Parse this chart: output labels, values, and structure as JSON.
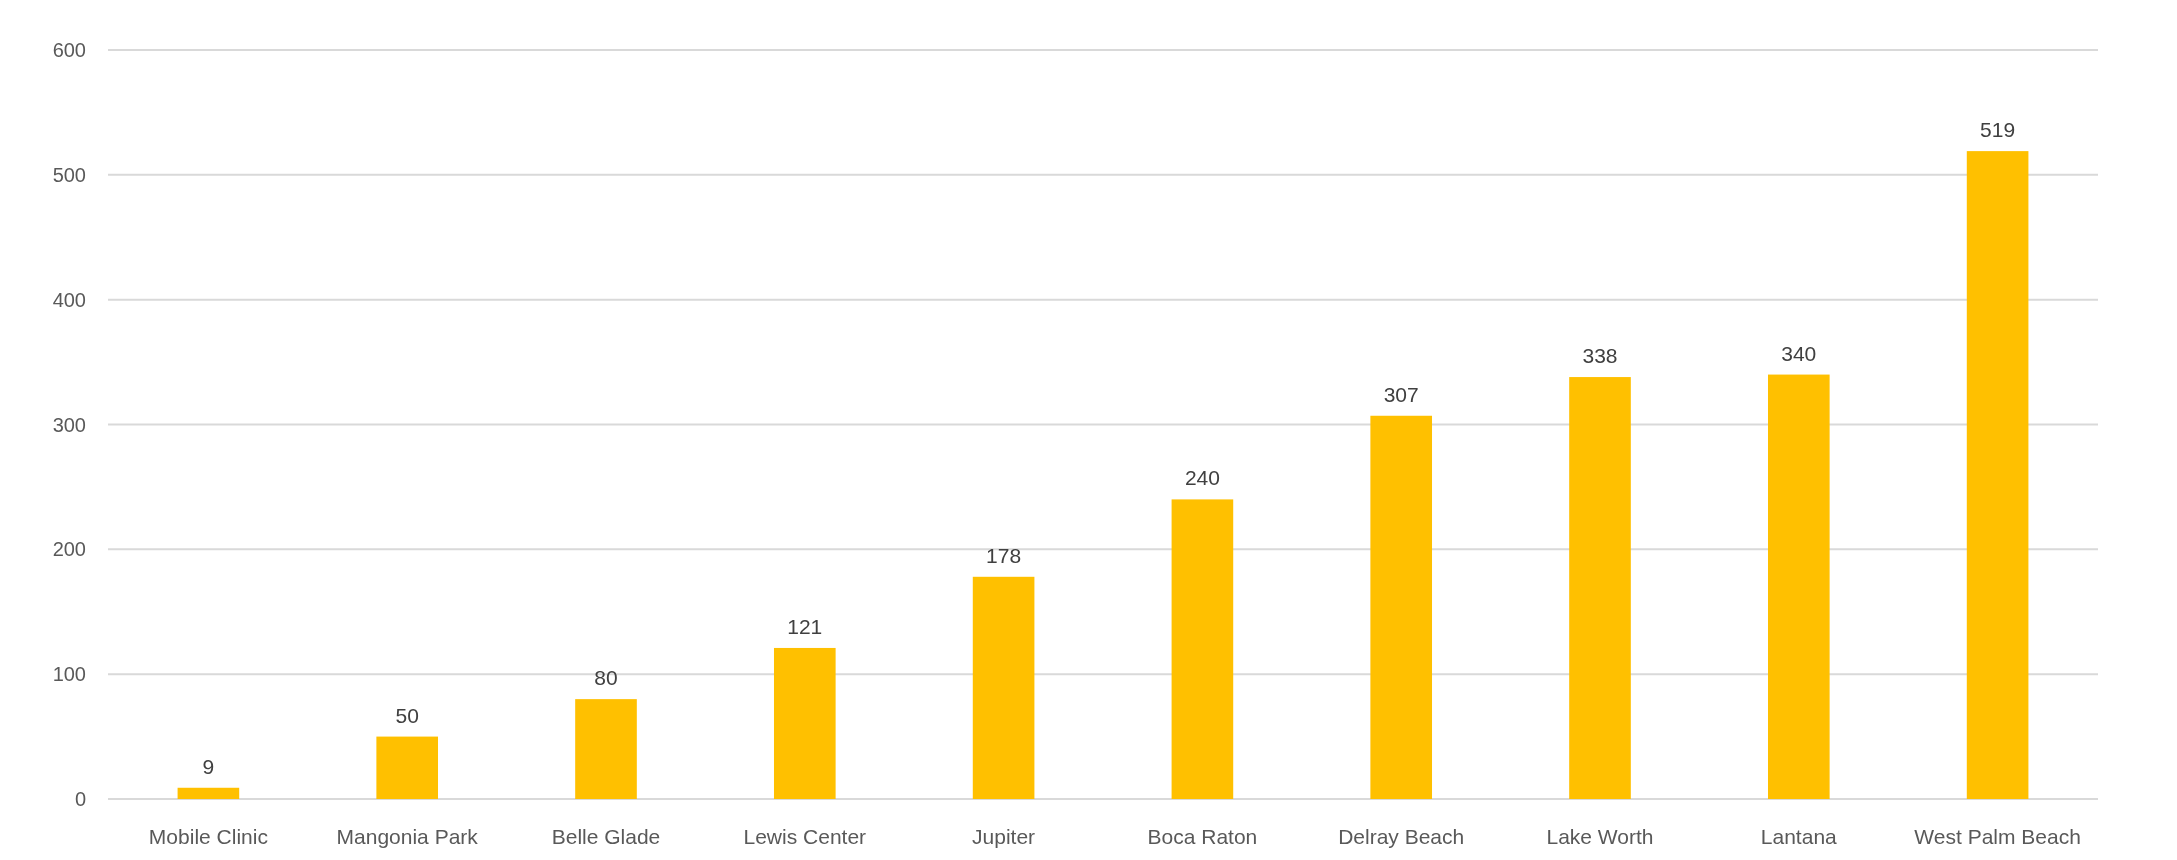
{
  "chart_data": {
    "type": "bar",
    "categories": [
      "Mobile Clinic",
      "Mangonia Park",
      "Belle Glade",
      "Lewis Center",
      "Jupiter",
      "Boca Raton",
      "Delray Beach",
      "Lake Worth",
      "Lantana",
      "West Palm Beach"
    ],
    "values": [
      9,
      50,
      80,
      121,
      178,
      240,
      307,
      338,
      340,
      519
    ],
    "color": "#ffc000",
    "ylim": [
      0,
      600
    ],
    "yticks": [
      0,
      100,
      200,
      300,
      400,
      500,
      600
    ],
    "grid": "y",
    "data_labels": true
  }
}
